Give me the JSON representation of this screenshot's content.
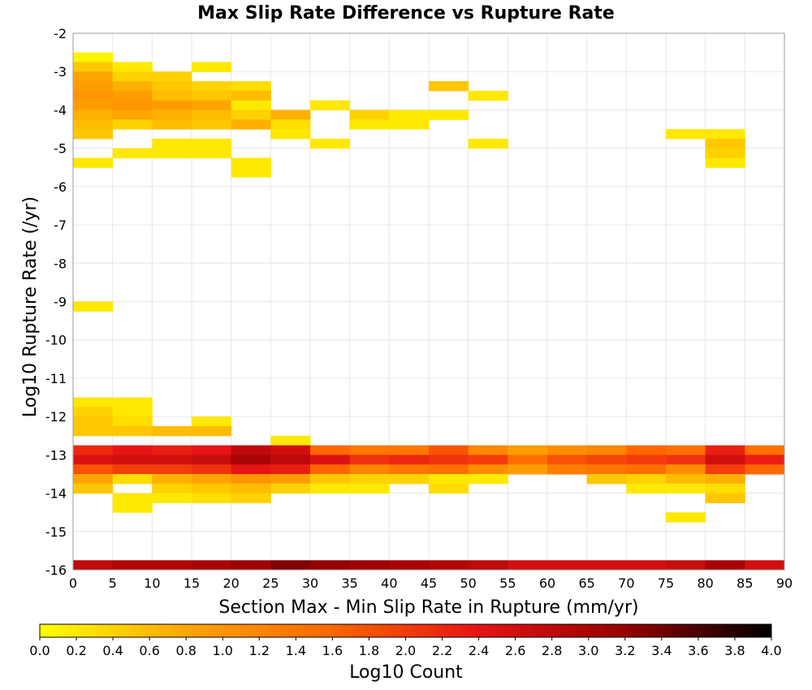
{
  "chart_data": {
    "type": "heatmap",
    "title": "Max Slip Rate Difference vs Rupture Rate",
    "xlabel": "Section Max - Min Slip Rate in Rupture (mm/yr)",
    "ylabel": "Log10 Rupture Rate (/yr)",
    "xlim": [
      0,
      90
    ],
    "ylim": [
      -16,
      -2
    ],
    "x_ticks": [
      "0",
      "5",
      "10",
      "15",
      "20",
      "25",
      "30",
      "35",
      "40",
      "45",
      "50",
      "55",
      "60",
      "65",
      "70",
      "75",
      "80",
      "85",
      "90"
    ],
    "y_ticks": [
      "-2",
      "-3",
      "-4",
      "-5",
      "-6",
      "-7",
      "-8",
      "-9",
      "-10",
      "-11",
      "-12",
      "-13",
      "-14",
      "-15",
      "-16"
    ],
    "grid": true,
    "cell_width": 5,
    "cell_height": 0.25,
    "colorbar": {
      "label": "Log10 Count",
      "range": [
        0,
        4
      ],
      "ticks": [
        "0.0",
        "0.2",
        "0.4",
        "0.6",
        "0.8",
        "1.0",
        "1.2",
        "1.4",
        "1.6",
        "1.8",
        "2.0",
        "2.2",
        "2.4",
        "2.6",
        "2.8",
        "3.0",
        "3.2",
        "3.4",
        "3.6",
        "3.8",
        "4.0"
      ],
      "colors": [
        "#ffff00",
        "#ffa500",
        "#ff6600",
        "#e61414",
        "#960000",
        "#000000"
      ],
      "position": "bottom"
    },
    "cells": [
      {
        "x": 0,
        "y": -2.5,
        "value": 0.1
      },
      {
        "x": 0,
        "y": -2.75,
        "value": 0.5
      },
      {
        "x": 0,
        "y": -3.0,
        "value": 0.8
      },
      {
        "x": 0,
        "y": -3.25,
        "value": 0.9
      },
      {
        "x": 0,
        "y": -3.5,
        "value": 1.0
      },
      {
        "x": 0,
        "y": -3.75,
        "value": 0.9
      },
      {
        "x": 0,
        "y": -4.0,
        "value": 0.7
      },
      {
        "x": 0,
        "y": -4.25,
        "value": 0.6
      },
      {
        "x": 0,
        "y": -4.5,
        "value": 0.5
      },
      {
        "x": 0,
        "y": -5.25,
        "value": 0.2
      },
      {
        "x": 0,
        "y": -9.0,
        "value": 0.2
      },
      {
        "x": 0,
        "y": -11.5,
        "value": 0.2
      },
      {
        "x": 0,
        "y": -11.75,
        "value": 0.4
      },
      {
        "x": 0,
        "y": -12.0,
        "value": 0.5
      },
      {
        "x": 0,
        "y": -12.25,
        "value": 0.5
      },
      {
        "x": 0,
        "y": -12.75,
        "value": 2.2
      },
      {
        "x": 0,
        "y": -13.0,
        "value": 2.5
      },
      {
        "x": 0,
        "y": -13.25,
        "value": 1.8
      },
      {
        "x": 0,
        "y": -13.5,
        "value": 0.8
      },
      {
        "x": 0,
        "y": -13.75,
        "value": 0.5
      },
      {
        "x": 0,
        "y": -15.75,
        "value": 2.8
      },
      {
        "x": 5,
        "y": -2.75,
        "value": 0.2
      },
      {
        "x": 5,
        "y": -3.0,
        "value": 0.4
      },
      {
        "x": 5,
        "y": -3.25,
        "value": 0.7
      },
      {
        "x": 5,
        "y": -3.5,
        "value": 0.9
      },
      {
        "x": 5,
        "y": -3.75,
        "value": 1.0
      },
      {
        "x": 5,
        "y": -4.0,
        "value": 0.8
      },
      {
        "x": 5,
        "y": -4.25,
        "value": 0.4
      },
      {
        "x": 5,
        "y": -5.0,
        "value": 0.2
      },
      {
        "x": 5,
        "y": -11.5,
        "value": 0.2
      },
      {
        "x": 5,
        "y": -11.75,
        "value": 0.2
      },
      {
        "x": 5,
        "y": -12.0,
        "value": 0.3
      },
      {
        "x": 5,
        "y": -12.25,
        "value": 0.5
      },
      {
        "x": 5,
        "y": -12.75,
        "value": 2.4
      },
      {
        "x": 5,
        "y": -13.0,
        "value": 2.6
      },
      {
        "x": 5,
        "y": -13.25,
        "value": 2.0
      },
      {
        "x": 5,
        "y": -13.5,
        "value": 0.3
      },
      {
        "x": 5,
        "y": -14.0,
        "value": 0.2
      },
      {
        "x": 5,
        "y": -14.25,
        "value": 0.2
      },
      {
        "x": 5,
        "y": -15.75,
        "value": 2.9
      },
      {
        "x": 10,
        "y": -3.0,
        "value": 0.4
      },
      {
        "x": 10,
        "y": -3.25,
        "value": 0.5
      },
      {
        "x": 10,
        "y": -3.5,
        "value": 0.6
      },
      {
        "x": 10,
        "y": -3.75,
        "value": 0.9
      },
      {
        "x": 10,
        "y": -4.0,
        "value": 0.7
      },
      {
        "x": 10,
        "y": -4.25,
        "value": 0.6
      },
      {
        "x": 10,
        "y": -4.75,
        "value": 0.2
      },
      {
        "x": 10,
        "y": -5.0,
        "value": 0.2
      },
      {
        "x": 10,
        "y": -12.25,
        "value": 0.6
      },
      {
        "x": 10,
        "y": -12.75,
        "value": 2.3
      },
      {
        "x": 10,
        "y": -13.0,
        "value": 2.6
      },
      {
        "x": 10,
        "y": -13.25,
        "value": 2.0
      },
      {
        "x": 10,
        "y": -13.5,
        "value": 0.7
      },
      {
        "x": 10,
        "y": -13.75,
        "value": 0.4
      },
      {
        "x": 10,
        "y": -14.0,
        "value": 0.2
      },
      {
        "x": 10,
        "y": -15.75,
        "value": 2.9
      },
      {
        "x": 15,
        "y": -2.75,
        "value": 0.2
      },
      {
        "x": 15,
        "y": -3.25,
        "value": 0.4
      },
      {
        "x": 15,
        "y": -3.5,
        "value": 0.5
      },
      {
        "x": 15,
        "y": -3.75,
        "value": 0.8
      },
      {
        "x": 15,
        "y": -4.0,
        "value": 0.6
      },
      {
        "x": 15,
        "y": -4.25,
        "value": 0.5
      },
      {
        "x": 15,
        "y": -4.75,
        "value": 0.2
      },
      {
        "x": 15,
        "y": -5.0,
        "value": 0.2
      },
      {
        "x": 15,
        "y": -12.0,
        "value": 0.2
      },
      {
        "x": 15,
        "y": -12.25,
        "value": 0.6
      },
      {
        "x": 15,
        "y": -12.75,
        "value": 2.4
      },
      {
        "x": 15,
        "y": -13.0,
        "value": 2.7
      },
      {
        "x": 15,
        "y": -13.25,
        "value": 2.1
      },
      {
        "x": 15,
        "y": -13.5,
        "value": 0.8
      },
      {
        "x": 15,
        "y": -13.75,
        "value": 0.5
      },
      {
        "x": 15,
        "y": -14.0,
        "value": 0.3
      },
      {
        "x": 15,
        "y": -15.75,
        "value": 3.0
      },
      {
        "x": 20,
        "y": -3.25,
        "value": 0.3
      },
      {
        "x": 20,
        "y": -3.5,
        "value": 0.6
      },
      {
        "x": 20,
        "y": -3.75,
        "value": 0.2
      },
      {
        "x": 20,
        "y": -4.0,
        "value": 0.4
      },
      {
        "x": 20,
        "y": -4.25,
        "value": 0.7
      },
      {
        "x": 20,
        "y": -5.25,
        "value": 0.2
      },
      {
        "x": 20,
        "y": -5.5,
        "value": 0.2
      },
      {
        "x": 20,
        "y": -12.75,
        "value": 2.8
      },
      {
        "x": 20,
        "y": -13.0,
        "value": 3.0
      },
      {
        "x": 20,
        "y": -13.25,
        "value": 2.4
      },
      {
        "x": 20,
        "y": -13.5,
        "value": 1.0
      },
      {
        "x": 20,
        "y": -13.75,
        "value": 0.6
      },
      {
        "x": 20,
        "y": -14.0,
        "value": 0.4
      },
      {
        "x": 20,
        "y": -15.75,
        "value": 3.1
      },
      {
        "x": 25,
        "y": -4.0,
        "value": 0.7
      },
      {
        "x": 25,
        "y": -4.25,
        "value": 0.3
      },
      {
        "x": 25,
        "y": -4.5,
        "value": 0.2
      },
      {
        "x": 25,
        "y": -12.5,
        "value": 0.2
      },
      {
        "x": 25,
        "y": -12.75,
        "value": 2.6
      },
      {
        "x": 25,
        "y": -13.0,
        "value": 2.8
      },
      {
        "x": 25,
        "y": -13.25,
        "value": 2.3
      },
      {
        "x": 25,
        "y": -13.5,
        "value": 0.9
      },
      {
        "x": 25,
        "y": -13.75,
        "value": 0.4
      },
      {
        "x": 25,
        "y": -15.75,
        "value": 3.3
      },
      {
        "x": 30,
        "y": -3.75,
        "value": 0.2
      },
      {
        "x": 30,
        "y": -4.75,
        "value": 0.2
      },
      {
        "x": 30,
        "y": -12.75,
        "value": 1.6
      },
      {
        "x": 30,
        "y": -13.0,
        "value": 2.5
      },
      {
        "x": 30,
        "y": -13.25,
        "value": 1.6
      },
      {
        "x": 30,
        "y": -13.5,
        "value": 0.5
      },
      {
        "x": 30,
        "y": -13.75,
        "value": 0.2
      },
      {
        "x": 30,
        "y": -15.75,
        "value": 3.2
      },
      {
        "x": 35,
        "y": -4.0,
        "value": 0.4
      },
      {
        "x": 35,
        "y": -4.25,
        "value": 0.2
      },
      {
        "x": 35,
        "y": -12.75,
        "value": 1.4
      },
      {
        "x": 35,
        "y": -13.0,
        "value": 2.1
      },
      {
        "x": 35,
        "y": -13.25,
        "value": 1.2
      },
      {
        "x": 35,
        "y": -13.5,
        "value": 0.4
      },
      {
        "x": 35,
        "y": -13.75,
        "value": 0.2
      },
      {
        "x": 35,
        "y": -15.75,
        "value": 3.1
      },
      {
        "x": 40,
        "y": -4.0,
        "value": 0.2
      },
      {
        "x": 40,
        "y": -4.25,
        "value": 0.2
      },
      {
        "x": 40,
        "y": -12.75,
        "value": 1.4
      },
      {
        "x": 40,
        "y": -13.0,
        "value": 2.2
      },
      {
        "x": 40,
        "y": -13.25,
        "value": 1.4
      },
      {
        "x": 40,
        "y": -13.5,
        "value": 0.4
      },
      {
        "x": 40,
        "y": -15.75,
        "value": 3.0
      },
      {
        "x": 45,
        "y": -3.25,
        "value": 0.5
      },
      {
        "x": 45,
        "y": -4.0,
        "value": 0.2
      },
      {
        "x": 45,
        "y": -12.75,
        "value": 1.8
      },
      {
        "x": 45,
        "y": -13.0,
        "value": 2.1
      },
      {
        "x": 45,
        "y": -13.25,
        "value": 1.5
      },
      {
        "x": 45,
        "y": -13.5,
        "value": 0.2
      },
      {
        "x": 45,
        "y": -13.75,
        "value": 0.3
      },
      {
        "x": 45,
        "y": -15.75,
        "value": 2.9
      },
      {
        "x": 50,
        "y": -3.5,
        "value": 0.2
      },
      {
        "x": 50,
        "y": -4.75,
        "value": 0.2
      },
      {
        "x": 50,
        "y": -12.75,
        "value": 1.2
      },
      {
        "x": 50,
        "y": -13.0,
        "value": 2.0
      },
      {
        "x": 50,
        "y": -13.25,
        "value": 1.1
      },
      {
        "x": 50,
        "y": -13.5,
        "value": 0.2
      },
      {
        "x": 50,
        "y": -15.75,
        "value": 2.8
      },
      {
        "x": 55,
        "y": -12.75,
        "value": 0.9
      },
      {
        "x": 55,
        "y": -13.0,
        "value": 1.5
      },
      {
        "x": 55,
        "y": -13.25,
        "value": 0.9
      },
      {
        "x": 55,
        "y": -15.75,
        "value": 2.6
      },
      {
        "x": 60,
        "y": -12.75,
        "value": 1.1
      },
      {
        "x": 60,
        "y": -13.0,
        "value": 1.8
      },
      {
        "x": 60,
        "y": -13.25,
        "value": 1.3
      },
      {
        "x": 60,
        "y": -15.75,
        "value": 2.6
      },
      {
        "x": 65,
        "y": -12.75,
        "value": 1.2
      },
      {
        "x": 65,
        "y": -13.0,
        "value": 1.9
      },
      {
        "x": 65,
        "y": -13.25,
        "value": 1.4
      },
      {
        "x": 65,
        "y": -13.5,
        "value": 0.5
      },
      {
        "x": 65,
        "y": -15.75,
        "value": 2.6
      },
      {
        "x": 70,
        "y": -12.75,
        "value": 1.6
      },
      {
        "x": 70,
        "y": -13.0,
        "value": 2.0
      },
      {
        "x": 70,
        "y": -13.25,
        "value": 1.5
      },
      {
        "x": 70,
        "y": -13.5,
        "value": 0.4
      },
      {
        "x": 70,
        "y": -13.75,
        "value": 0.2
      },
      {
        "x": 70,
        "y": -15.75,
        "value": 2.6
      },
      {
        "x": 75,
        "y": -4.5,
        "value": 0.2
      },
      {
        "x": 75,
        "y": -12.75,
        "value": 1.5
      },
      {
        "x": 75,
        "y": -13.0,
        "value": 2.1
      },
      {
        "x": 75,
        "y": -13.25,
        "value": 1.1
      },
      {
        "x": 75,
        "y": -13.5,
        "value": 0.6
      },
      {
        "x": 75,
        "y": -13.75,
        "value": 0.2
      },
      {
        "x": 75,
        "y": -14.5,
        "value": 0.2
      },
      {
        "x": 75,
        "y": -15.75,
        "value": 2.7
      },
      {
        "x": 80,
        "y": -4.5,
        "value": 0.2
      },
      {
        "x": 80,
        "y": -4.75,
        "value": 0.5
      },
      {
        "x": 80,
        "y": -5.0,
        "value": 0.4
      },
      {
        "x": 80,
        "y": -5.25,
        "value": 0.2
      },
      {
        "x": 80,
        "y": -12.75,
        "value": 2.3
      },
      {
        "x": 80,
        "y": -13.0,
        "value": 2.6
      },
      {
        "x": 80,
        "y": -13.25,
        "value": 2.0
      },
      {
        "x": 80,
        "y": -13.5,
        "value": 0.7
      },
      {
        "x": 80,
        "y": -13.75,
        "value": 0.3
      },
      {
        "x": 80,
        "y": -14.0,
        "value": 0.5
      },
      {
        "x": 80,
        "y": -15.75,
        "value": 3.0
      },
      {
        "x": 85,
        "y": -12.75,
        "value": 1.5
      },
      {
        "x": 85,
        "y": -13.0,
        "value": 2.3
      },
      {
        "x": 85,
        "y": -13.25,
        "value": 1.6
      },
      {
        "x": 85,
        "y": -15.75,
        "value": 2.6
      }
    ]
  }
}
